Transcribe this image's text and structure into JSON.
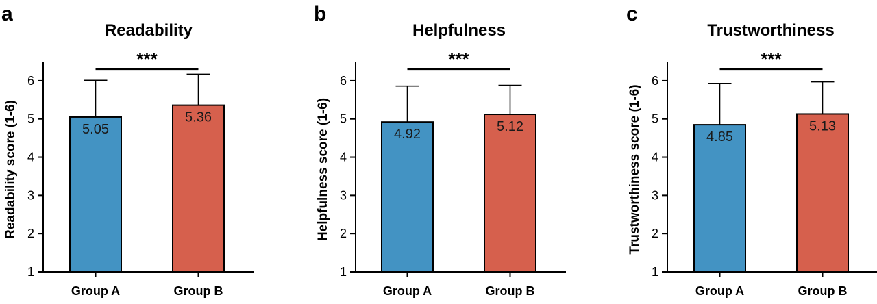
{
  "chart_data": [
    {
      "type": "bar",
      "panel_label": "a",
      "title": "Readability",
      "ylabel": "Readability score (1-6)",
      "categories": [
        "Group A",
        "Group B"
      ],
      "values": [
        5.05,
        5.36
      ],
      "value_labels": [
        "5.05",
        "5.36"
      ],
      "error_upper": [
        6.01,
        6.17
      ],
      "ylim": [
        1,
        6.5
      ],
      "yticks": [
        "1",
        "2",
        "3",
        "4",
        "5",
        "6"
      ],
      "significance": "***",
      "colors": [
        "#4393c3",
        "#d6604d"
      ]
    },
    {
      "type": "bar",
      "panel_label": "b",
      "title": "Helpfulness",
      "ylabel": "Helpfulness score (1-6)",
      "categories": [
        "Group A",
        "Group B"
      ],
      "values": [
        4.92,
        5.12
      ],
      "value_labels": [
        "4.92",
        "5.12"
      ],
      "error_upper": [
        5.86,
        5.88
      ],
      "ylim": [
        1,
        6.5
      ],
      "yticks": [
        "1",
        "2",
        "3",
        "4",
        "5",
        "6"
      ],
      "significance": "***",
      "colors": [
        "#4393c3",
        "#d6604d"
      ]
    },
    {
      "type": "bar",
      "panel_label": "c",
      "title": "Trustworthiness",
      "ylabel": "Trustworthiness score (1-6)",
      "categories": [
        "Group A",
        "Group B"
      ],
      "values": [
        4.85,
        5.13
      ],
      "value_labels": [
        "4.85",
        "5.13"
      ],
      "error_upper": [
        5.93,
        5.97
      ],
      "ylim": [
        1,
        6.5
      ],
      "yticks": [
        "1",
        "2",
        "3",
        "4",
        "5",
        "6"
      ],
      "significance": "***",
      "colors": [
        "#4393c3",
        "#d6604d"
      ]
    }
  ]
}
